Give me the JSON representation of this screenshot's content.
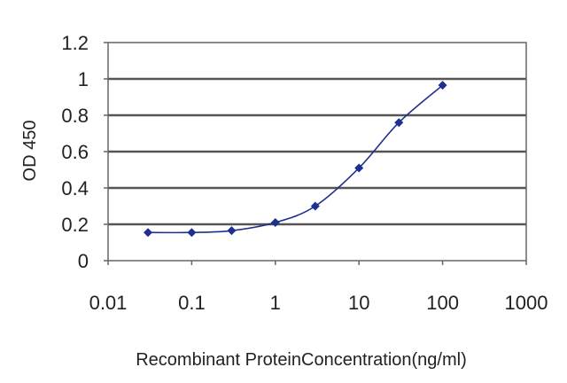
{
  "chart_data": {
    "type": "line",
    "title": "",
    "xlabel": "Recombinant ProteinConcentration(ng/ml)",
    "ylabel": "OD 450",
    "x_scale": "log",
    "xlim": [
      0.01,
      1000
    ],
    "ylim": [
      0,
      1.2
    ],
    "x_ticks": [
      "0.01",
      "0.1",
      "1",
      "10",
      "100",
      "1000"
    ],
    "y_ticks": [
      "0",
      "0.2",
      "0.4",
      "0.6",
      "0.8",
      "1",
      "1.2"
    ],
    "grid": "horizontal",
    "legend": "none",
    "series": [
      {
        "x": [
          0.03,
          0.1,
          0.3,
          1,
          3,
          10,
          30,
          100
        ],
        "y": [
          0.155,
          0.155,
          0.165,
          0.21,
          0.3,
          0.51,
          0.76,
          0.965
        ],
        "color": "#1f2f8f"
      }
    ]
  }
}
